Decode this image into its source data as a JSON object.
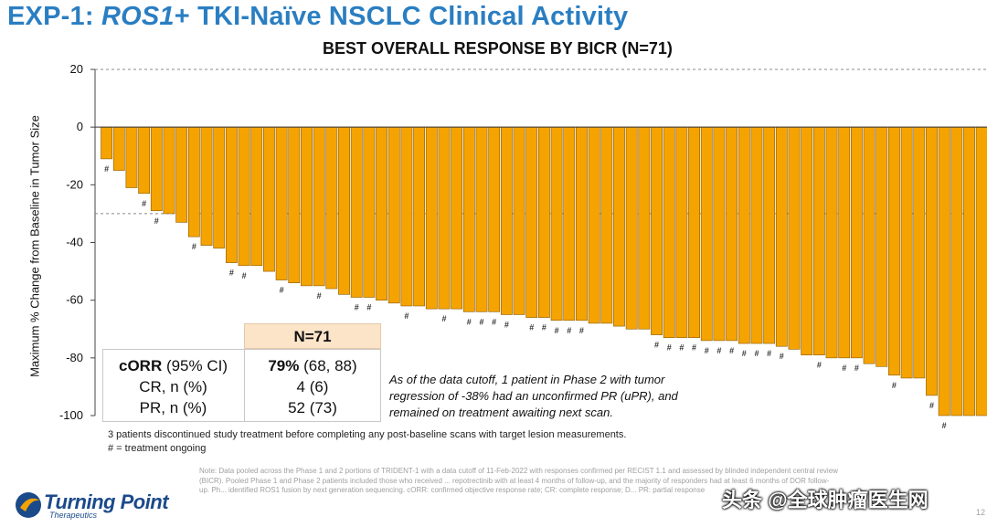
{
  "header": {
    "title_prefix": "EXP-1: ",
    "title_gene": "ROS1",
    "title_rest": "+ TKI-Naïve NSCLC Clinical Activity",
    "subtitle": "BEST OVERALL RESPONSE BY BICR (N=71)"
  },
  "chart_data": {
    "type": "bar",
    "title": "BEST OVERALL RESPONSE BY BICR (N=71)",
    "ylabel": "Maximum % Change from Baseline in Tumor Size",
    "xlabel": "",
    "ylim": [
      -100,
      20
    ],
    "yticks": [
      20,
      0,
      -20,
      -40,
      -60,
      -80,
      -100
    ],
    "reference_lines": [
      20,
      -30
    ],
    "bar_color": "#f5a300",
    "values": [
      -11,
      -15,
      -21,
      -23,
      -29,
      -30,
      -33,
      -38,
      -41,
      -42,
      -47,
      -48,
      -48,
      -50,
      -53,
      -54,
      -55,
      -55,
      -56,
      -58,
      -59,
      -59,
      -60,
      -61,
      -62,
      -62,
      -63,
      -63,
      -63,
      -64,
      -64,
      -64,
      -65,
      -65,
      -66,
      -66,
      -67,
      -67,
      -67,
      -68,
      -68,
      -69,
      -70,
      -70,
      -72,
      -73,
      -73,
      -73,
      -74,
      -74,
      -74,
      -75,
      -75,
      -75,
      -76,
      -77,
      -79,
      -79,
      -80,
      -80,
      -80,
      -82,
      -83,
      -86,
      -87,
      -87,
      -93,
      -100,
      -100,
      -100,
      -100
    ],
    "ongoing_marker": "#",
    "ongoing_flags": [
      1,
      0,
      0,
      1,
      1,
      0,
      0,
      1,
      0,
      0,
      1,
      1,
      0,
      0,
      1,
      0,
      0,
      1,
      0,
      0,
      1,
      1,
      0,
      0,
      1,
      0,
      0,
      1,
      0,
      1,
      1,
      1,
      1,
      0,
      1,
      1,
      1,
      1,
      1,
      0,
      0,
      0,
      0,
      0,
      1,
      1,
      1,
      1,
      1,
      1,
      1,
      1,
      1,
      1,
      1,
      0,
      0,
      1,
      0,
      1,
      1,
      0,
      0,
      1,
      0,
      0,
      1,
      1,
      0,
      0,
      0
    ]
  },
  "response_table": {
    "header": "N=71",
    "rows": [
      {
        "label_bold": "cORR",
        "label_rest": " (95% CI)",
        "value_bold": "79%",
        "value_rest": " (68, 88)"
      },
      {
        "label_bold": "",
        "label_rest": "CR, n (%)",
        "value_bold": "",
        "value_rest": "4 (6)"
      },
      {
        "label_bold": "",
        "label_rest": "PR, n (%)",
        "value_bold": "",
        "value_rest": "52 (73)"
      }
    ]
  },
  "annotation": "As of the data cutoff, 1 patient in Phase 2 with tumor regression of -38% had an unconfirmed PR (uPR), and remained on treatment awaiting next scan.",
  "footnotes": {
    "line1": "3 patients discontinued study treatment before completing any post-baseline scans with target lesion measurements.",
    "line2": "# = treatment ongoing"
  },
  "small_note": "Note: Data pooled across the Phase 1 and 2 portions of TRIDENT-1 with a data cutoff of 11-Feb-2022 with responses confirmed per RECIST 1.1 and assessed by blinded independent central review (BICR). Pooled Phase 1 and Phase 2 patients included those who received ... repotrectinib with at least 4 months of follow-up, and the majority of responders had at least 6 months of DOR follow-up. Ph... identified ROS1 fusion by next generation sequencing. cORR: confirmed objective response rate; CR: complete response; D... PR: partial response",
  "logo": {
    "main": "Turning Point",
    "sub": "Therapeutics"
  },
  "watermark": "头条 @全球肿瘤医生网",
  "page_number": "12"
}
